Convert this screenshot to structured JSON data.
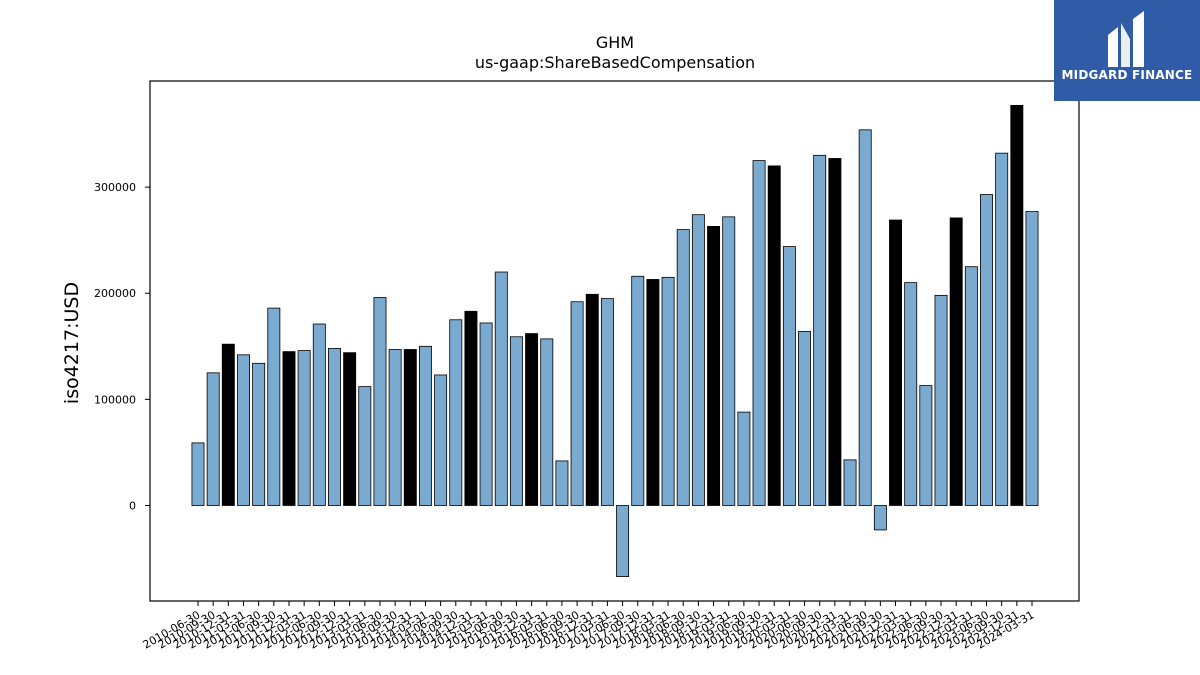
{
  "chart_data": {
    "type": "bar",
    "title": "GHM",
    "subtitle": "us-gaap:ShareBasedCompensation",
    "xlabel": "",
    "ylabel": "iso4217:USD",
    "ylim": [
      -90000,
      400000
    ],
    "yticks": [
      0,
      100000,
      200000,
      300000
    ],
    "ytick_labels": [
      "0",
      "100000",
      "200000",
      "300000"
    ],
    "grid": false,
    "categories": [
      "2010-06-30",
      "2010-09-30",
      "2010-12-31",
      "2011-03-31",
      "2011-06-30",
      "2011-09-30",
      "2011-12-31",
      "2012-03-31",
      "2012-06-30",
      "2012-09-30",
      "2012-12-31",
      "2013-03-31",
      "2013-06-30",
      "2013-09-30",
      "2013-12-31",
      "2014-03-31",
      "2014-06-30",
      "2014-09-30",
      "2014-12-31",
      "2015-03-31",
      "2015-06-30",
      "2015-09-30",
      "2015-12-31",
      "2016-03-31",
      "2016-06-30",
      "2016-09-30",
      "2016-12-31",
      "2017-03-31",
      "2017-06-30",
      "2017-09-30",
      "2017-12-31",
      "2018-03-31",
      "2018-06-30",
      "2018-09-30",
      "2018-12-31",
      "2019-03-31",
      "2019-06-30",
      "2019-09-30",
      "2019-12-31",
      "2020-03-31",
      "2020-06-30",
      "2020-09-30",
      "2020-12-31",
      "2021-03-31",
      "2021-06-30",
      "2021-09-30",
      "2021-12-31",
      "2022-03-31",
      "2022-06-30",
      "2022-09-30",
      "2022-12-31",
      "2023-03-31",
      "2023-06-30",
      "2023-09-30",
      "2023-12-31",
      "2024-03-31"
    ],
    "values": [
      59000,
      125000,
      152000,
      142000,
      134000,
      186000,
      145000,
      146000,
      171000,
      148000,
      144000,
      112000,
      196000,
      147000,
      147000,
      150000,
      123000,
      175000,
      183000,
      172000,
      220000,
      159000,
      162000,
      157000,
      42000,
      192000,
      199000,
      195000,
      -67000,
      216000,
      213000,
      215000,
      260000,
      274000,
      263000,
      272000,
      88000,
      325000,
      320000,
      244000,
      164000,
      330000,
      327000,
      43000,
      354000,
      -23000,
      269000,
      210000,
      113000,
      198000,
      271000,
      225000,
      293000,
      332000,
      377000,
      277000
    ],
    "highlight": [
      false,
      false,
      true,
      false,
      false,
      false,
      true,
      false,
      false,
      false,
      true,
      false,
      false,
      false,
      true,
      false,
      false,
      false,
      true,
      false,
      false,
      false,
      true,
      false,
      false,
      false,
      true,
      false,
      false,
      false,
      true,
      false,
      false,
      false,
      true,
      false,
      false,
      false,
      true,
      false,
      false,
      false,
      true,
      false,
      false,
      false,
      true,
      false,
      false,
      false,
      true,
      false,
      false,
      false,
      true,
      false
    ],
    "colors": {
      "bar": "#7aaad0",
      "highlight": "#000000",
      "edge": "#000000"
    }
  },
  "logo": {
    "text": "MIDGARD FINANCE",
    "background": "#2f5ba7"
  }
}
